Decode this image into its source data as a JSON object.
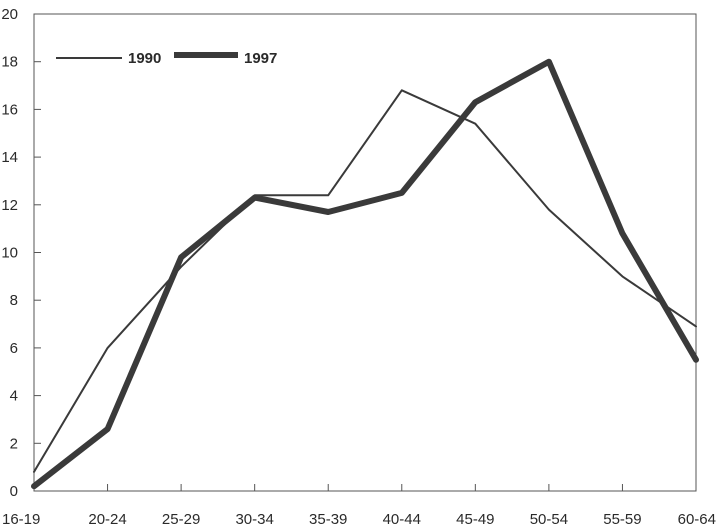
{
  "chart_data": {
    "type": "line",
    "title": "",
    "xlabel": "",
    "ylabel": "",
    "categories": [
      "16-19",
      "20-24",
      "25-29",
      "30-34",
      "35-39",
      "40-44",
      "45-49",
      "50-54",
      "55-59",
      "60-64"
    ],
    "ylim": [
      0,
      20
    ],
    "yticks": [
      0,
      2,
      4,
      6,
      8,
      10,
      12,
      14,
      16,
      18,
      20
    ],
    "grid": false,
    "legend_position": "top-left",
    "series": [
      {
        "name": "1990",
        "values": [
          0.8,
          6.0,
          9.4,
          12.4,
          12.4,
          16.8,
          15.4,
          11.8,
          9.0,
          6.9
        ],
        "color": "#3a3a3a",
        "style": "thin"
      },
      {
        "name": "1997",
        "values": [
          0.2,
          2.6,
          9.8,
          12.3,
          11.7,
          12.5,
          16.3,
          18.0,
          10.8,
          5.5
        ],
        "color": "#3a3a3a",
        "style": "thick"
      }
    ]
  }
}
